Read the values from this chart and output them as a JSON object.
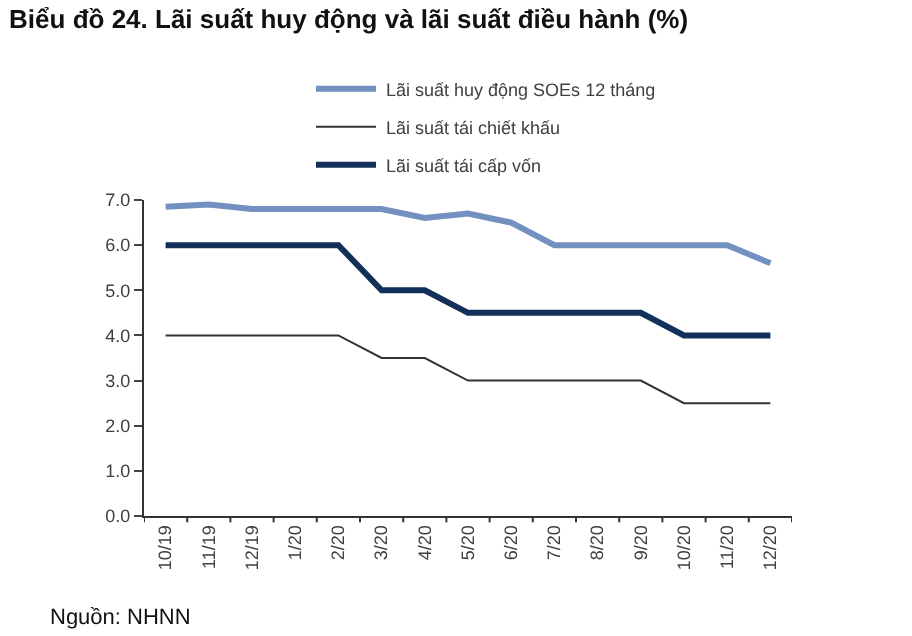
{
  "chart_data": {
    "type": "line",
    "title": "Biểu đồ 24. Lãi suất huy động và lãi suất điều hành (%)",
    "categories": [
      "10/19",
      "11/19",
      "12/19",
      "1/20",
      "2/20",
      "3/20",
      "4/20",
      "5/20",
      "6/20",
      "7/20",
      "8/20",
      "9/20",
      "10/20",
      "11/20",
      "12/20"
    ],
    "series": [
      {
        "name": "Lãi suất huy động SOEs 12 tháng",
        "color": "#7391c0",
        "values": [
          6.85,
          6.9,
          6.8,
          6.8,
          6.8,
          6.8,
          6.6,
          6.7,
          6.5,
          6.0,
          6.0,
          6.0,
          6.0,
          6.0,
          5.6
        ]
      },
      {
        "name": "Lãi suất tái chiết khấu",
        "color": "#333333",
        "values": [
          4,
          4,
          4,
          4,
          4,
          3.5,
          3.5,
          3,
          3,
          3,
          3,
          3,
          2.5,
          2.5,
          2.5
        ]
      },
      {
        "name": "Lãi suất tái cấp vốn",
        "color": "#12305a",
        "values": [
          6,
          6,
          6,
          6,
          6,
          5,
          5,
          4.5,
          4.5,
          4.5,
          4.5,
          4.5,
          4,
          4,
          4
        ]
      }
    ],
    "ylim": [
      0,
      7
    ],
    "yticks": [
      {
        "value": 0,
        "label": "0.0"
      },
      {
        "value": 1,
        "label": "1.0"
      },
      {
        "value": 2,
        "label": "2.0"
      },
      {
        "value": 3,
        "label": "3.0"
      },
      {
        "value": 4,
        "label": "4.0"
      },
      {
        "value": 5,
        "label": "5.0"
      },
      {
        "value": 6,
        "label": "6.0"
      },
      {
        "value": 7,
        "label": "7.0"
      }
    ],
    "legend": "top",
    "marker": "none",
    "line_style": "solid",
    "annotations": [
      "Nguồn: NHNN"
    ]
  }
}
